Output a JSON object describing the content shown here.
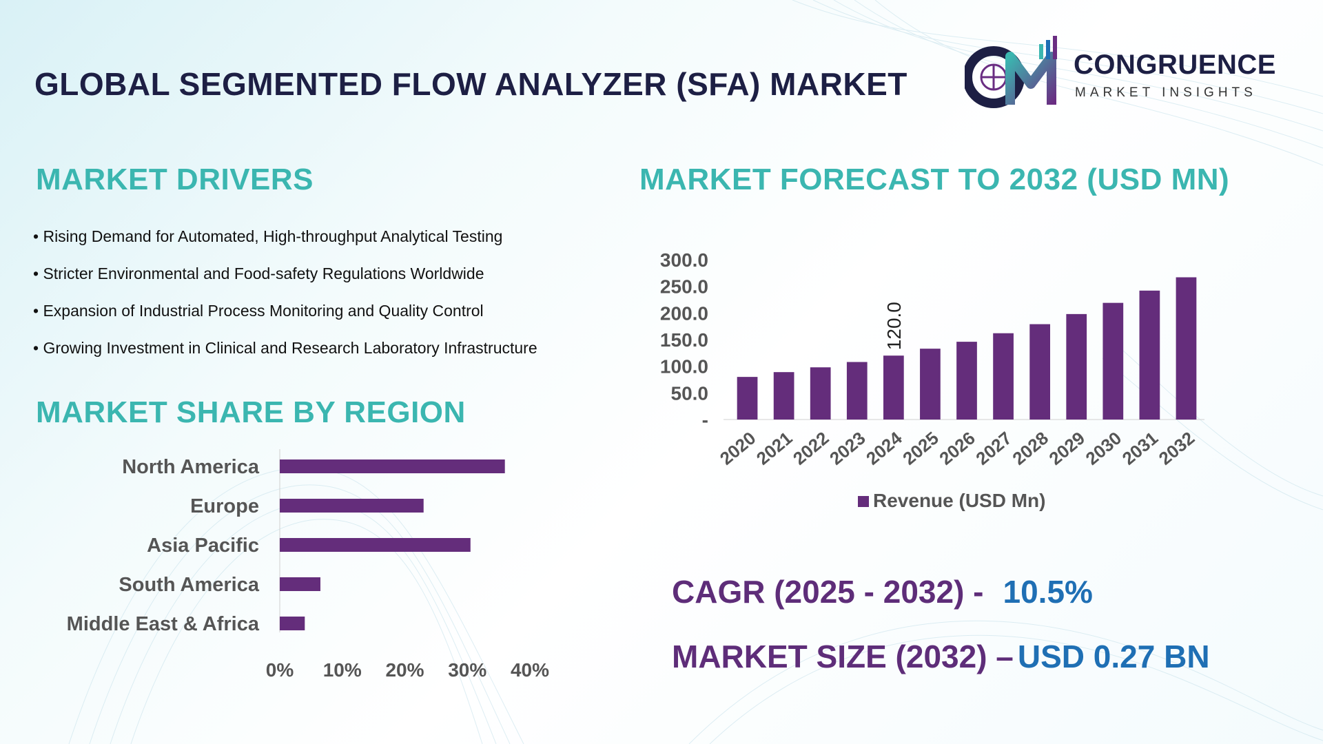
{
  "header": {
    "title": "GLOBAL SEGMENTED FLOW ANALYZER (SFA) MARKET"
  },
  "logo": {
    "name": "CONGRUENCE",
    "subtitle": "MARKET INSIGHTS",
    "mark_letters": "CM"
  },
  "drivers": {
    "title": "MARKET DRIVERS",
    "items": [
      "Rising Demand for Automated, High-throughput Analytical Testing",
      "Stricter Environmental and Food-safety Regulations Worldwide",
      "Expansion of Industrial Process Monitoring and Quality Control",
      "Growing Investment in Clinical and Research Laboratory Infrastructure"
    ]
  },
  "forecast": {
    "title": "MARKET FORECAST TO 2032 (USD MN)"
  },
  "region": {
    "title": "MARKET SHARE BY REGION"
  },
  "stats": {
    "cagr_label": "CAGR (2025 - 2032) -",
    "cagr_value": "10.5%",
    "size_label": "MARKET SIZE (2032) –",
    "size_value": "USD 0.27 BN"
  },
  "colors": {
    "bar": "#642d7b",
    "section_title": "#3bb6b0",
    "stat_label": "#5e2d79",
    "stat_value": "#1f6fb4",
    "axis_text": "#555555"
  },
  "chart_data": [
    {
      "type": "bar",
      "categories": [
        "2020",
        "2021",
        "2022",
        "2023",
        "2024",
        "2025",
        "2026",
        "2027",
        "2028",
        "2029",
        "2030",
        "2031",
        "2032"
      ],
      "series": [
        {
          "name": "Revenue (USD Mn)",
          "values": [
            80,
            89,
            98,
            108,
            120,
            133,
            146,
            162,
            179,
            198,
            219,
            242,
            267
          ]
        }
      ],
      "data_labels": [
        {
          "category": "2024",
          "text": "120.0"
        }
      ],
      "y_ticks": [
        "-",
        "50.0",
        "100.0",
        "150.0",
        "200.0",
        "250.0",
        "300.0"
      ],
      "ylim": [
        0,
        300
      ],
      "grid": false,
      "legend": "bottom",
      "x_tick_rotation": "diagonal"
    },
    {
      "type": "bar",
      "orientation": "horizontal",
      "categories": [
        "North America",
        "Europe",
        "Asia Pacific",
        "South America",
        "Middle East & Africa"
      ],
      "values": [
        36,
        23,
        30.5,
        6.5,
        4
      ],
      "x_ticks": [
        "0%",
        "10%",
        "20%",
        "30%",
        "40%"
      ],
      "xlim": [
        0,
        40
      ],
      "grid": false
    }
  ]
}
